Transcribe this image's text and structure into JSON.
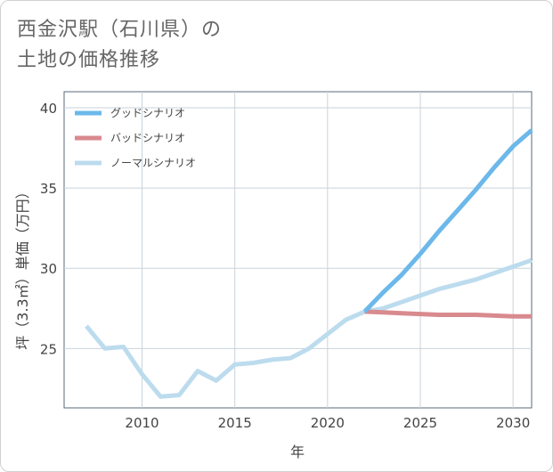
{
  "chart_data": {
    "type": "line",
    "title": "西金沢駅（石川県）の\n土地の価格推移",
    "xlabel": "年",
    "ylabel": "坪（3.3㎡）単価（万円）",
    "xlim": [
      2005.8,
      2031
    ],
    "ylim": [
      21.3,
      41
    ],
    "x_ticks": [
      2010,
      2015,
      2020,
      2025,
      2030
    ],
    "y_ticks": [
      25,
      30,
      35,
      40
    ],
    "grid": true,
    "legend_position": "top-left",
    "series": [
      {
        "name": "グッドシナリオ",
        "color": "#6cb8ea",
        "x": [
          2022,
          2023,
          2024,
          2025,
          2026,
          2027,
          2028,
          2029,
          2030,
          2031
        ],
        "y": [
          27.3,
          28.5,
          29.6,
          30.9,
          32.3,
          33.6,
          34.9,
          36.3,
          37.6,
          38.6
        ]
      },
      {
        "name": "バッドシナリオ",
        "color": "#d98a8e",
        "x": [
          2022,
          2023,
          2024,
          2025,
          2026,
          2027,
          2028,
          2029,
          2030,
          2031
        ],
        "y": [
          27.3,
          27.25,
          27.2,
          27.15,
          27.1,
          27.1,
          27.1,
          27.05,
          27.0,
          27.0
        ]
      },
      {
        "name": "ノーマルシナリオ",
        "color": "#bcdcee",
        "x": [
          2007,
          2008,
          2009,
          2010,
          2011,
          2012,
          2013,
          2014,
          2015,
          2016,
          2017,
          2018,
          2019,
          2020,
          2021,
          2022,
          2023,
          2024,
          2025,
          2026,
          2027,
          2028,
          2029,
          2030,
          2031
        ],
        "y": [
          26.4,
          25.0,
          25.1,
          23.4,
          22.0,
          22.1,
          23.6,
          23.0,
          24.0,
          24.1,
          24.3,
          24.4,
          25.0,
          25.9,
          26.8,
          27.3,
          27.5,
          27.9,
          28.3,
          28.7,
          29.0,
          29.3,
          29.7,
          30.1,
          30.5
        ]
      }
    ]
  }
}
